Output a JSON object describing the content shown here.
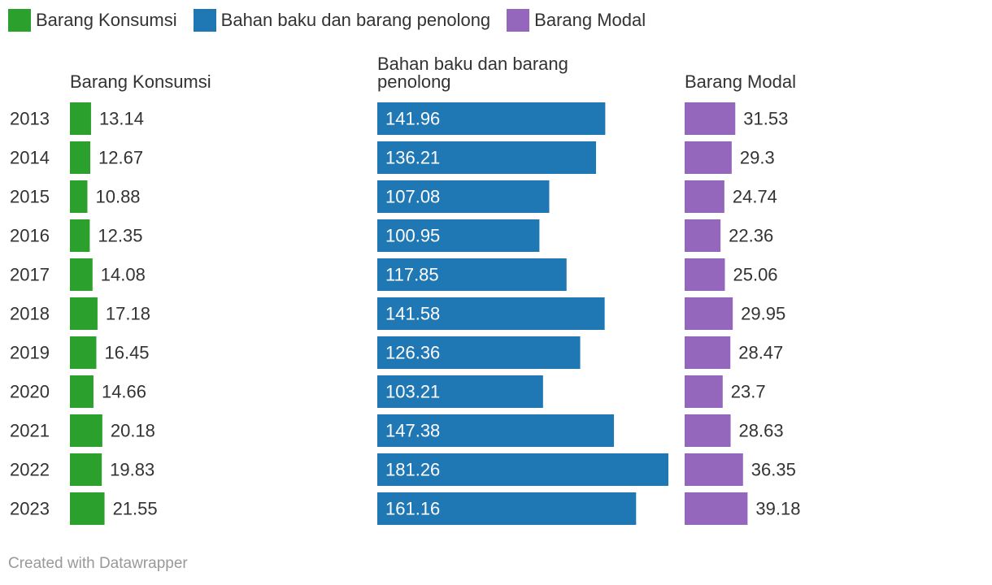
{
  "legend": [
    {
      "label": "Barang Konsumsi",
      "color": "#2ca02c"
    },
    {
      "label": "Bahan baku dan barang penolong",
      "color": "#1f77b4"
    },
    {
      "label": "Barang Modal",
      "color": "#9467bd"
    }
  ],
  "chart_data": {
    "type": "bar",
    "categories": [
      "2013",
      "2014",
      "2015",
      "2016",
      "2017",
      "2018",
      "2019",
      "2020",
      "2021",
      "2022",
      "2023"
    ],
    "series": [
      {
        "name": "Barang Konsumsi",
        "header": [
          "Barang Konsumsi"
        ],
        "color": "#2ca02c",
        "values": [
          13.14,
          12.67,
          10.88,
          12.35,
          14.08,
          17.18,
          16.45,
          14.66,
          20.18,
          19.83,
          21.55
        ],
        "labels": [
          "13.14",
          "12.67",
          "10.88",
          "12.35",
          "14.08",
          "17.18",
          "16.45",
          "14.66",
          "20.18",
          "19.83",
          "21.55"
        ]
      },
      {
        "name": "Bahan baku dan barang penolong",
        "header": [
          "Bahan baku dan barang",
          "penolong"
        ],
        "color": "#1f77b4",
        "values": [
          141.96,
          136.21,
          107.08,
          100.95,
          117.85,
          141.58,
          126.36,
          103.21,
          147.38,
          181.26,
          161.16
        ],
        "labels": [
          "141.96",
          "136.21",
          "107.08",
          "100.95",
          "117.85",
          "141.58",
          "126.36",
          "103.21",
          "147.38",
          "181.26",
          "161.16"
        ]
      },
      {
        "name": "Barang Modal",
        "header": [
          "Barang Modal"
        ],
        "color": "#9467bd",
        "values": [
          31.53,
          29.3,
          24.74,
          22.36,
          25.06,
          29.95,
          28.47,
          23.7,
          28.63,
          36.35,
          39.18
        ],
        "labels": [
          "31.53",
          "29.3",
          "24.74",
          "22.36",
          "25.06",
          "29.95",
          "28.47",
          "23.7",
          "28.63",
          "36.35",
          "39.18"
        ]
      }
    ],
    "xlim": [
      0,
      181.26
    ]
  },
  "footer": {
    "credit": "Created with Datawrapper"
  }
}
